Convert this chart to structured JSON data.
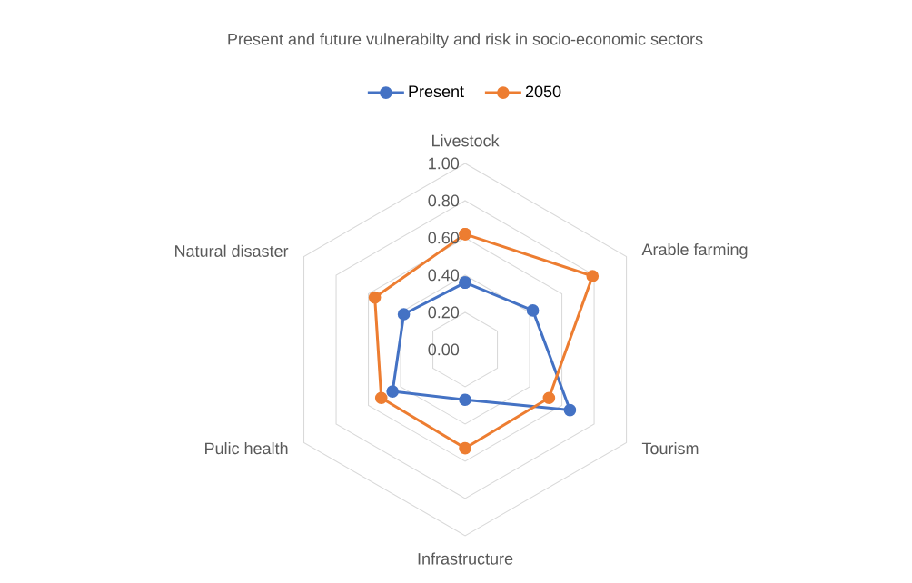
{
  "chart_data": {
    "type": "radar",
    "title": "Present and future vulnerabilty and risk in socio-economic sectors",
    "categories": [
      "Livestock",
      "Arable farming",
      "Tourism",
      "Infrastructure",
      "Pulic health",
      "Natural disaster"
    ],
    "series": [
      {
        "name": "Present",
        "color": "#4472c4",
        "values": [
          0.36,
          0.42,
          0.65,
          0.27,
          0.45,
          0.38
        ]
      },
      {
        "name": "2050",
        "color": "#ed7d31",
        "values": [
          0.62,
          0.79,
          0.52,
          0.53,
          0.52,
          0.56
        ]
      }
    ],
    "ylim": [
      0,
      1
    ],
    "yticks": [
      {
        "value": 0,
        "label": "0.00"
      },
      {
        "value": 0.2,
        "label": "0.20"
      },
      {
        "value": 0.4,
        "label": "0.40"
      },
      {
        "value": 0.6,
        "label": "0.60"
      },
      {
        "value": 0.8,
        "label": "0.80"
      },
      {
        "value": 1,
        "label": "1.00"
      }
    ],
    "grid": true,
    "legend": "top",
    "marker": "circle"
  }
}
